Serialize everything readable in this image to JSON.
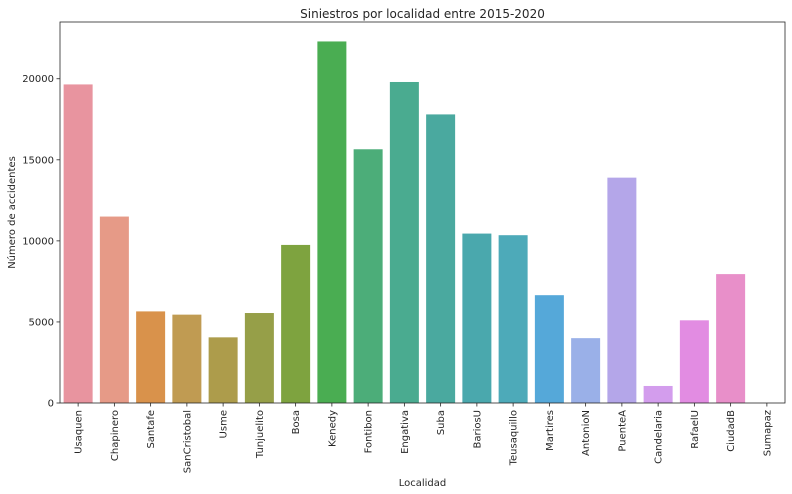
{
  "chart_data": {
    "type": "bar",
    "title": "Siniestros por localidad entre 2015-2020",
    "xlabel": "Localidad",
    "ylabel": "Número de accidentes",
    "ylim": [
      0,
      23500
    ],
    "yticks": [
      0,
      5000,
      10000,
      15000,
      20000
    ],
    "grid": false,
    "categories": [
      "Usaquen",
      "Chapinero",
      "Santafe",
      "SanCristobal",
      "Usme",
      "Tunjuelito",
      "Bosa",
      "Kenedy",
      "Fontibon",
      "Engativa",
      "Suba",
      "BariosU",
      "Teusaquillo",
      "Martires",
      "AntonioN",
      "PuenteA",
      "Candelaria",
      "RafaelU",
      "CiudadB",
      "Sumapaz"
    ],
    "values": [
      19650,
      11500,
      5650,
      5450,
      4050,
      5550,
      9750,
      22300,
      15650,
      19800,
      17800,
      10450,
      10350,
      6650,
      4000,
      13900,
      1050,
      5100,
      7950,
      0
    ],
    "colors": [
      "#e8949f",
      "#e69a87",
      "#d9924b",
      "#c09b52",
      "#ad9c4b",
      "#969f48",
      "#7ea33f",
      "#4aad52",
      "#4cad79",
      "#4aab90",
      "#4aa99f",
      "#4aa8ad",
      "#4daab9",
      "#55a8d9",
      "#9ab0e8",
      "#b4a6e9",
      "#d39ded",
      "#e28ce2",
      "#e88fc9",
      "#e99ab3"
    ]
  }
}
